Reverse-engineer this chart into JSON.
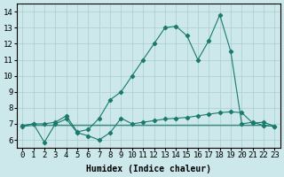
{
  "xlabel": "Humidex (Indice chaleur)",
  "xlim": [
    -0.5,
    23.5
  ],
  "ylim": [
    5.5,
    14.5
  ],
  "xticks": [
    0,
    1,
    2,
    3,
    4,
    5,
    6,
    7,
    8,
    9,
    10,
    11,
    12,
    13,
    14,
    15,
    16,
    17,
    18,
    19,
    20,
    21,
    22,
    23
  ],
  "yticks": [
    6,
    7,
    8,
    9,
    10,
    11,
    12,
    13,
    14
  ],
  "bg_color": "#cce8ea",
  "grid_color": "#aaccce",
  "line_color": "#1a7a6e",
  "line1_x": [
    0,
    1,
    2,
    3,
    4,
    5,
    6,
    7,
    8,
    9,
    10,
    11,
    12,
    13,
    14,
    15,
    16,
    17,
    18,
    19,
    20,
    21,
    22,
    23
  ],
  "line1_y": [
    6.9,
    7.0,
    7.0,
    7.1,
    7.5,
    6.5,
    6.65,
    7.35,
    8.5,
    9.0,
    10.0,
    11.0,
    12.0,
    13.0,
    13.1,
    12.5,
    11.0,
    12.2,
    13.8,
    11.5,
    7.0,
    7.1,
    6.9,
    6.85
  ],
  "line2_x": [
    0,
    1,
    2,
    3,
    4,
    5,
    6,
    7,
    8,
    9,
    10,
    11,
    12,
    13,
    14,
    15,
    16,
    17,
    18,
    19,
    20,
    21,
    22,
    23
  ],
  "line2_y": [
    6.85,
    7.0,
    5.85,
    7.0,
    7.3,
    6.45,
    6.25,
    6.0,
    6.45,
    7.35,
    7.0,
    7.1,
    7.2,
    7.3,
    7.35,
    7.4,
    7.5,
    7.6,
    7.7,
    7.75,
    7.7,
    7.05,
    7.1,
    6.85
  ],
  "line3_x": [
    0,
    1,
    2,
    3,
    4,
    5,
    6,
    7,
    8,
    9,
    10,
    11,
    12,
    13,
    14,
    15,
    16,
    17,
    18,
    19,
    20,
    21,
    22,
    23
  ],
  "line3_y": [
    6.85,
    6.9,
    6.9,
    6.9,
    6.9,
    6.9,
    6.9,
    6.9,
    6.9,
    6.9,
    6.9,
    6.9,
    6.9,
    6.9,
    6.9,
    6.9,
    6.9,
    6.9,
    6.9,
    6.9,
    6.9,
    6.9,
    6.9,
    6.85
  ],
  "label_fontsize": 7,
  "tick_fontsize": 6.5
}
